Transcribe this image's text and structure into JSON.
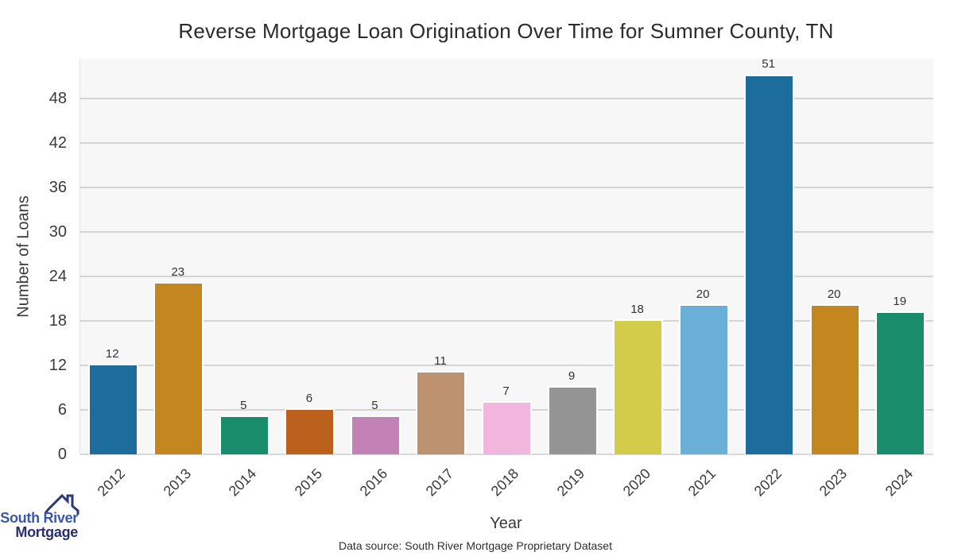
{
  "title": "Reverse Mortgage Loan Origination Over Time for Sumner County, TN",
  "chart_data": {
    "type": "bar",
    "title": "Reverse Mortgage Loan Origination Over Time for Sumner County, TN",
    "categories": [
      "2012",
      "2013",
      "2014",
      "2015",
      "2016",
      "2017",
      "2018",
      "2019",
      "2020",
      "2021",
      "2022",
      "2023",
      "2024"
    ],
    "values": [
      12,
      23,
      5,
      6,
      5,
      11,
      7,
      9,
      18,
      20,
      51,
      20,
      19
    ],
    "bar_colors": [
      "#1c6d9c",
      "#c4871f",
      "#198c6b",
      "#bb611d",
      "#c282b6",
      "#bd9270",
      "#f2b6de",
      "#949494",
      "#d3cb4a",
      "#69afd7",
      "#1c6d9c",
      "#c4871f",
      "#198c6b"
    ],
    "xlabel": "Year",
    "ylabel": "Number of Loans",
    "yticks": [
      0,
      6,
      12,
      18,
      24,
      30,
      36,
      42,
      48
    ],
    "ylim": [
      0,
      53.3
    ],
    "grid": "horizontal",
    "legend": "none",
    "plot_bg_color": "#f7f7f7",
    "gridline_color": "#d4d4d4",
    "value_labels_shown": true
  },
  "footer": {
    "data_source": "Data source: South River Mortgage Proprietary Dataset"
  },
  "logo": {
    "line1": "South River",
    "line2": "Mortgage",
    "line1_color": "#3b57a9",
    "line2_color": "#272f6e",
    "roof_color": "#2b3876"
  }
}
